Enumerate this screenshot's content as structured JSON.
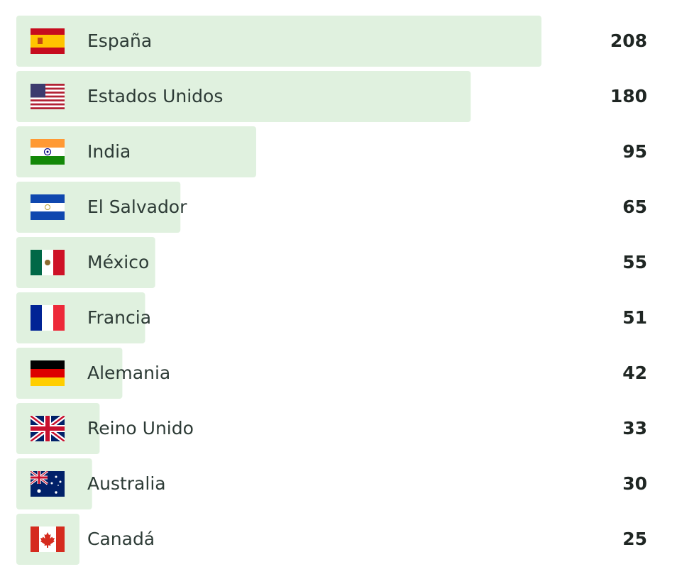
{
  "list": {
    "rows": [
      {
        "country": "España",
        "value": 208
      },
      {
        "country": "Estados Unidos",
        "value": 180
      },
      {
        "country": "India",
        "value": 95
      },
      {
        "country": "El Salvador",
        "value": 65
      },
      {
        "country": "México",
        "value": 55
      },
      {
        "country": "Francia",
        "value": 51
      },
      {
        "country": "Alemania",
        "value": 42
      },
      {
        "country": "Reino Unido",
        "value": 33
      },
      {
        "country": "Australia",
        "value": 30
      },
      {
        "country": "Canadá",
        "value": 25
      }
    ]
  }
}
